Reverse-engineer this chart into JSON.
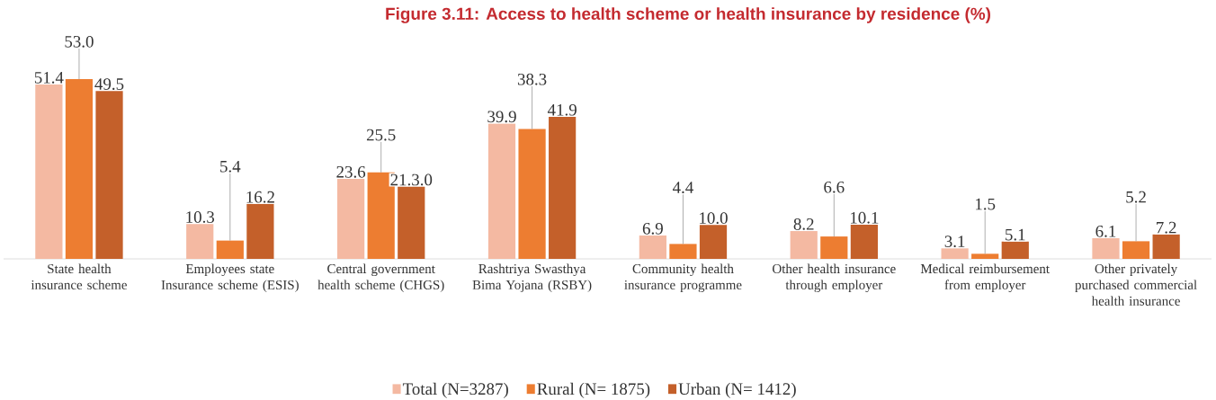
{
  "chart_data": {
    "type": "bar",
    "title": "Figure 3.11: Access to health scheme or health insurance by residence (%)",
    "categories": [
      "State health insurance scheme",
      "Employees state Insurance scheme (ESIS)",
      "Central government health scheme (CHGS)",
      "Rashtriya Swasthya Bima Yojana (RSBY)",
      "Community health insurance programme",
      "Other health insurance through employer",
      "Medical reimbursement from employer",
      "Other privately purchased commercial health insurance"
    ],
    "series": [
      {
        "name": "Total (N=3287)",
        "color": "#f4b9a2",
        "values": [
          51.4,
          10.3,
          23.6,
          39.9,
          6.9,
          8.2,
          3.1,
          6.1
        ],
        "value_labels": [
          "51.4",
          "10.3",
          "23.6",
          "39.9",
          "6.9",
          "8.2",
          "3.1",
          "6.1"
        ]
      },
      {
        "name": "Rural (N= 1875)",
        "color": "#ed7d31",
        "values": [
          53.0,
          5.4,
          25.5,
          38.3,
          4.4,
          6.6,
          1.5,
          5.2
        ],
        "value_labels": [
          "53.0",
          "5.4",
          "25.5",
          "38.3",
          "4.4",
          "6.6",
          "1.5",
          "5.2"
        ]
      },
      {
        "name": "Urban (N= 1412)",
        "color": "#c4602a",
        "values": [
          49.5,
          16.2,
          21.3,
          41.9,
          10.0,
          10.1,
          5.1,
          7.2
        ],
        "value_labels": [
          "49.5",
          "16.2",
          "21.3.0",
          "41.9",
          "10.0",
          "10.1",
          "5.1",
          "7.2"
        ]
      }
    ],
    "legend": "bottom"
  }
}
